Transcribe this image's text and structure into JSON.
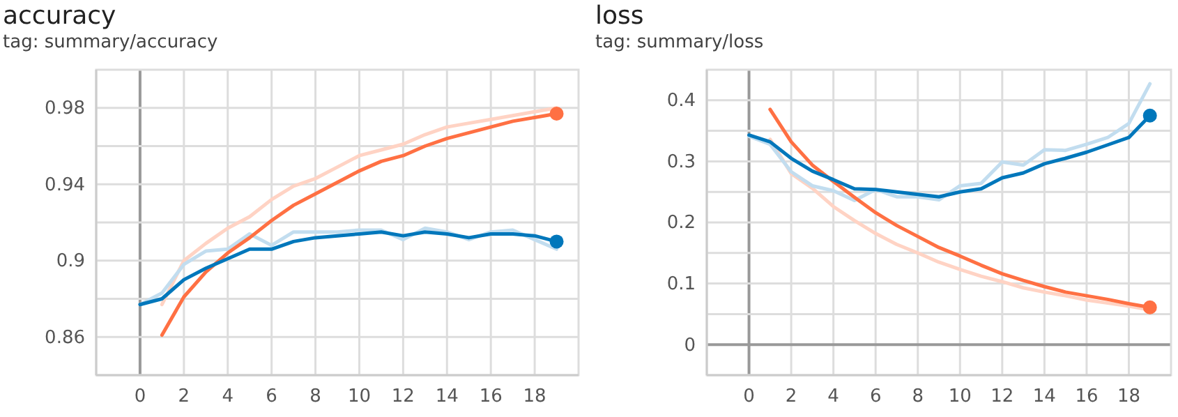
{
  "chart_data": [
    {
      "type": "line",
      "title": "accuracy",
      "subtitle": "tag: summary/accuracy",
      "x": [
        0,
        1,
        2,
        3,
        4,
        5,
        6,
        7,
        8,
        9,
        10,
        11,
        12,
        13,
        14,
        15,
        16,
        17,
        18,
        19
      ],
      "xlim": [
        -2,
        20
      ],
      "xticks": [
        0,
        2,
        4,
        6,
        8,
        10,
        12,
        14,
        16,
        18
      ],
      "ylim": [
        0.84,
        1.0
      ],
      "yticks": [
        0.86,
        {
          "value": 0.88,
          "label": null
        },
        {
          "value": 0.9,
          "label": "0.9"
        },
        {
          "value": 0.92,
          "label": null
        },
        0.94,
        {
          "value": 0.96,
          "label": null
        },
        0.98
      ],
      "grid": true,
      "line_style": "solid",
      "series": [
        {
          "color": "#ffd3c4",
          "values": [
            null,
            0.877,
            0.9,
            0.909,
            0.917,
            0.923,
            0.932,
            0.939,
            0.943,
            0.949,
            0.955,
            0.958,
            0.961,
            0.966,
            0.97,
            0.972,
            0.974,
            0.976,
            0.978,
            0.98
          ]
        },
        {
          "color": "#c2ddef",
          "values": [
            0.877,
            0.883,
            0.898,
            0.905,
            0.906,
            0.914,
            0.908,
            0.915,
            0.915,
            0.915,
            0.916,
            0.916,
            0.911,
            0.917,
            0.915,
            0.911,
            0.915,
            0.916,
            0.911,
            0.906
          ]
        },
        {
          "color": "#ff7043",
          "values": [
            null,
            0.861,
            0.881,
            0.894,
            0.904,
            0.912,
            0.921,
            0.929,
            0.935,
            0.941,
            0.947,
            0.952,
            0.955,
            0.96,
            0.964,
            0.967,
            0.97,
            0.973,
            0.975,
            0.977
          ]
        },
        {
          "color": "#0077bb",
          "values": [
            0.877,
            0.88,
            0.89,
            0.896,
            0.901,
            0.906,
            0.906,
            0.91,
            0.912,
            0.913,
            0.914,
            0.915,
            0.913,
            0.915,
            0.914,
            0.912,
            0.914,
            0.914,
            0.913,
            0.91
          ]
        },
        {
          "type": "scatter",
          "marker": "circle",
          "color": "#ff7043",
          "values": [
            null,
            null,
            null,
            null,
            null,
            null,
            null,
            null,
            null,
            null,
            null,
            null,
            null,
            null,
            null,
            null,
            null,
            null,
            null,
            0.977
          ]
        },
        {
          "type": "scatter",
          "marker": "circle",
          "color": "#0077bb",
          "values": [
            null,
            null,
            null,
            null,
            null,
            null,
            null,
            null,
            null,
            null,
            null,
            null,
            null,
            null,
            null,
            null,
            null,
            null,
            null,
            0.91
          ]
        }
      ]
    },
    {
      "type": "line",
      "title": "loss",
      "subtitle": "tag: summary/loss",
      "x": [
        0,
        1,
        2,
        3,
        4,
        5,
        6,
        7,
        8,
        9,
        10,
        11,
        12,
        13,
        14,
        15,
        16,
        17,
        18,
        19
      ],
      "xlim": [
        -2,
        20
      ],
      "xticks": [
        0,
        2,
        4,
        6,
        8,
        10,
        12,
        14,
        16,
        18
      ],
      "ylim": [
        -0.05,
        0.45
      ],
      "yticks": [
        0,
        {
          "value": 0.05,
          "label": null
        },
        0.1,
        {
          "value": 0.15,
          "label": null
        },
        0.2,
        {
          "value": 0.25,
          "label": null
        },
        0.3,
        {
          "value": 0.35,
          "label": null
        },
        0.4
      ],
      "grid": true,
      "line_style": "solid",
      "series": [
        {
          "color": "#ffd3c4",
          "values": [
            null,
            0.336,
            0.28,
            0.256,
            0.226,
            0.203,
            0.182,
            0.164,
            0.15,
            0.135,
            0.123,
            0.112,
            0.103,
            0.093,
            0.086,
            0.08,
            0.073,
            0.068,
            0.063,
            0.057
          ]
        },
        {
          "color": "#c2ddef",
          "values": [
            0.341,
            0.328,
            0.283,
            0.26,
            0.252,
            0.236,
            0.254,
            0.242,
            0.242,
            0.237,
            0.26,
            0.264,
            0.299,
            0.294,
            0.319,
            0.318,
            0.328,
            0.339,
            0.362,
            0.427
          ]
        },
        {
          "color": "#ff7043",
          "values": [
            null,
            0.385,
            0.332,
            0.294,
            0.267,
            0.241,
            0.216,
            0.195,
            0.177,
            0.159,
            0.145,
            0.13,
            0.116,
            0.105,
            0.095,
            0.086,
            0.08,
            0.074,
            0.067,
            0.061
          ]
        },
        {
          "color": "#0077bb",
          "values": [
            0.343,
            0.332,
            0.305,
            0.284,
            0.27,
            0.255,
            0.254,
            0.25,
            0.246,
            0.242,
            0.25,
            0.255,
            0.273,
            0.281,
            0.296,
            0.305,
            0.315,
            0.327,
            0.339,
            0.375
          ]
        },
        {
          "type": "scatter",
          "marker": "circle",
          "color": "#ff7043",
          "values": [
            null,
            null,
            null,
            null,
            null,
            null,
            null,
            null,
            null,
            null,
            null,
            null,
            null,
            null,
            null,
            null,
            null,
            null,
            null,
            0.061
          ]
        },
        {
          "type": "scatter",
          "marker": "circle",
          "color": "#0077bb",
          "values": [
            null,
            null,
            null,
            null,
            null,
            null,
            null,
            null,
            null,
            null,
            null,
            null,
            null,
            null,
            null,
            null,
            null,
            null,
            null,
            0.375
          ]
        }
      ]
    }
  ]
}
